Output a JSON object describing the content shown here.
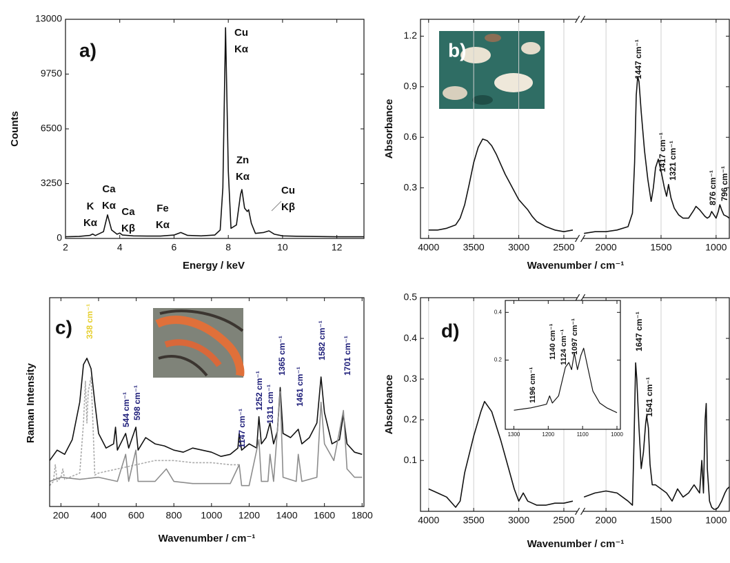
{
  "chart_data": [
    {
      "type": "line",
      "label": "a)",
      "x_label": "Energy / keV",
      "y_label": "Counts",
      "xlim": [
        2,
        13
      ],
      "ylim": [
        0,
        13000
      ],
      "xticks": [
        2,
        4,
        6,
        8,
        10,
        12
      ],
      "yticks": [
        0,
        3250,
        6500,
        9750,
        13000
      ],
      "x": [
        2,
        2.5,
        2.9,
        3.0,
        3.1,
        3.4,
        3.55,
        3.7,
        3.9,
        4.0,
        4.1,
        4.5,
        5,
        5.5,
        6.0,
        6.25,
        6.5,
        7.0,
        7.5,
        7.7,
        7.8,
        7.9,
        8.0,
        8.1,
        8.3,
        8.45,
        8.5,
        8.6,
        8.7,
        8.75,
        8.85,
        9.0,
        9.3,
        9.5,
        9.7,
        10,
        10.5,
        11,
        11.5,
        12,
        12.5,
        13
      ],
      "series": [
        {
          "color": "#111111",
          "values": [
            100,
            120,
            180,
            260,
            170,
            400,
            1400,
            500,
            250,
            320,
            200,
            150,
            140,
            140,
            200,
            350,
            180,
            150,
            200,
            500,
            3000,
            12500,
            4000,
            600,
            800,
            2600,
            2900,
            1800,
            1600,
            1700,
            900,
            300,
            350,
            450,
            250,
            150,
            130,
            120,
            110,
            100,
            100,
            100
          ]
        }
      ],
      "annotations": [
        [
          "K",
          "Kα"
        ],
        [
          "Ca",
          "Kα"
        ],
        [
          "Ca",
          "Kβ"
        ],
        [
          "Fe",
          "Kα"
        ],
        [
          "Cu",
          "Kα"
        ],
        [
          "Zn",
          "Kα"
        ],
        [
          "Cu",
          "Kβ"
        ]
      ]
    },
    {
      "type": "line",
      "label": "b)",
      "label_color": "#ffffff",
      "x_label": "Wavenumber / cm⁻¹",
      "y_label": "Absorbance",
      "xlim": [
        4090,
        880
      ],
      "x_break": [
        2350,
        2210
      ],
      "ylim": [
        0,
        1.3
      ],
      "grid": true,
      "xticks": [
        4000,
        3500,
        3000,
        2500,
        2000,
        1500,
        1000
      ],
      "yticks": [
        {
          "value": 0.3,
          "label": "0.3"
        },
        {
          "value": 0.6,
          "label": "0.6"
        },
        {
          "value": 0.9,
          "label": "0.9"
        },
        {
          "value": 1.2,
          "label": "1.2"
        }
      ],
      "x": [
        4000,
        3900,
        3800,
        3700,
        3650,
        3600,
        3550,
        3500,
        3450,
        3400,
        3350,
        3300,
        3250,
        3200,
        3150,
        3100,
        3050,
        3000,
        2950,
        2900,
        2850,
        2800,
        2700,
        2600,
        2500,
        2400,
        null,
        2200,
        2100,
        2000,
        1900,
        1800,
        1760,
        1740,
        1725,
        1712,
        1700,
        1680,
        1650,
        1620,
        1590,
        1570,
        1550,
        1525,
        1500,
        1470,
        1450,
        1432,
        1410,
        1380,
        1340,
        1300,
        1250,
        1200,
        1183,
        1150,
        1100,
        1080,
        1059,
        1040,
        1020,
        1000,
        980,
        966,
        950,
        930,
        900,
        880
      ],
      "series": [
        {
          "color": "#111111",
          "values": [
            0.05,
            0.05,
            0.06,
            0.08,
            0.12,
            0.2,
            0.32,
            0.45,
            0.54,
            0.59,
            0.58,
            0.55,
            0.5,
            0.44,
            0.38,
            0.33,
            0.28,
            0.23,
            0.2,
            0.17,
            0.13,
            0.1,
            0.07,
            0.05,
            0.04,
            0.05,
            null,
            0.03,
            0.04,
            0.04,
            0.05,
            0.07,
            0.15,
            0.45,
            0.85,
            0.96,
            0.93,
            0.75,
            0.52,
            0.35,
            0.22,
            0.3,
            0.42,
            0.47,
            0.4,
            0.3,
            0.25,
            0.32,
            0.24,
            0.18,
            0.14,
            0.12,
            0.12,
            0.17,
            0.19,
            0.17,
            0.13,
            0.12,
            0.13,
            0.16,
            0.14,
            0.12,
            0.16,
            0.2,
            0.17,
            0.14,
            0.13,
            0.12
          ]
        }
      ],
      "annotations": [
        "1447 cm⁻¹",
        "1417 cm⁻¹",
        "1321 cm⁻¹",
        "876 cm⁻¹",
        "796 cm⁻¹"
      ]
    },
    {
      "type": "line",
      "label": "c)",
      "x_label": "Wavenumber / cm⁻¹",
      "y_label": "Raman Intensity",
      "xlim": [
        140,
        1810
      ],
      "ylim": [
        0,
        100
      ],
      "xticks": [
        200,
        400,
        600,
        800,
        1000,
        1200,
        1400,
        1600,
        1800
      ],
      "series": [
        {
          "color": "#111111",
          "x": [
            140,
            180,
            220,
            260,
            300,
            320,
            338,
            360,
            380,
            400,
            440,
            480,
            490,
            500,
            544,
            560,
            598,
            610,
            650,
            700,
            750,
            800,
            850,
            900,
            950,
            1000,
            1050,
            1100,
            1140,
            1147,
            1160,
            1200,
            1240,
            1252,
            1265,
            1290,
            1311,
            1330,
            1350,
            1365,
            1380,
            1420,
            1461,
            1480,
            1520,
            1560,
            1582,
            1600,
            1640,
            1680,
            1701,
            1720,
            1760,
            1800
          ],
          "values": [
            22,
            27,
            25,
            32,
            50,
            68,
            71,
            66,
            50,
            35,
            28,
            30,
            38,
            27,
            35,
            28,
            38,
            27,
            33,
            30,
            29,
            27,
            26,
            28,
            27,
            26,
            24,
            25,
            28,
            35,
            27,
            30,
            28,
            43,
            30,
            33,
            40,
            30,
            36,
            57,
            35,
            33,
            37,
            30,
            33,
            40,
            62,
            45,
            30,
            32,
            44,
            30,
            26,
            25
          ]
        },
        {
          "color": "#aaaaaa",
          "dashed": true,
          "x": [
            140,
            160,
            170,
            180,
            200,
            210,
            220,
            300,
            320,
            330,
            338,
            345,
            360,
            370,
            380,
            400,
            500,
            600,
            700,
            800,
            900,
            1000,
            1100,
            1150
          ],
          "values": [
            10,
            12,
            20,
            12,
            14,
            18,
            13,
            16,
            40,
            60,
            40,
            55,
            62,
            40,
            15,
            16,
            18,
            20,
            22,
            22,
            21,
            21,
            20,
            20
          ]
        },
        {
          "color": "#8c8c8c",
          "x": [
            140,
            200,
            300,
            400,
            500,
            544,
            560,
            598,
            610,
            700,
            760,
            800,
            900,
            1000,
            1100,
            1147,
            1160,
            1200,
            1252,
            1265,
            1300,
            1311,
            1330,
            1365,
            1380,
            1450,
            1461,
            1480,
            1560,
            1582,
            1600,
            1650,
            1701,
            1720,
            1760,
            1800
          ],
          "values": [
            12,
            14,
            13,
            14,
            12,
            25,
            12,
            27,
            12,
            12,
            18,
            12,
            11,
            11,
            11,
            20,
            10,
            10,
            32,
            12,
            12,
            25,
            12,
            55,
            14,
            12,
            25,
            12,
            14,
            50,
            30,
            22,
            46,
            18,
            14,
            14
          ]
        }
      ],
      "annotations": [
        {
          "text": "338 cm⁻¹",
          "color": "#e6cf2e"
        },
        {
          "text": "544 cm⁻¹",
          "color": "#1c1c78"
        },
        {
          "text": "598 cm⁻¹",
          "color": "#1c1c78"
        },
        {
          "text": "1147 cm⁻¹",
          "color": "#1c1c78"
        },
        {
          "text": "1252 cm⁻¹",
          "color": "#1c1c78"
        },
        {
          "text": "1311 cm⁻¹",
          "color": "#1c1c78"
        },
        {
          "text": "1365 cm⁻¹",
          "color": "#1c1c78"
        },
        {
          "text": "1461 cm⁻¹",
          "color": "#1c1c78"
        },
        {
          "text": "1582 cm⁻¹",
          "color": "#1c1c78"
        },
        {
          "text": "1701 cm⁻¹",
          "color": "#1c1c78"
        }
      ]
    },
    {
      "type": "line",
      "label": "d)",
      "x_label": "Wavenumber / cm⁻¹",
      "y_label": "Absorbance",
      "xlim": [
        4090,
        880
      ],
      "x_break": [
        2350,
        2210
      ],
      "ylim": [
        -0.025,
        0.5
      ],
      "grid": true,
      "xticks": [
        4000,
        3500,
        3000,
        2500,
        2000,
        1500,
        1000
      ],
      "yticks": [
        {
          "value": 0.1,
          "label": "0.1"
        },
        {
          "value": 0.2,
          "label": "0.2"
        },
        {
          "value": 0.3,
          "label": "0.3"
        },
        {
          "value": 0.4,
          "label": "0.4"
        },
        {
          "value": 0.5,
          "label": "0.5"
        }
      ],
      "x": [
        4000,
        3900,
        3800,
        3700,
        3650,
        3600,
        3500,
        3420,
        3380,
        3300,
        3200,
        3100,
        3050,
        3000,
        2950,
        2900,
        2850,
        2800,
        2700,
        2600,
        2500,
        2400,
        null,
        2200,
        2100,
        2000,
        1900,
        1800,
        1760,
        1745,
        1731,
        1720,
        1700,
        1680,
        1660,
        1640,
        1631,
        1615,
        1600,
        1580,
        1550,
        1500,
        1450,
        1400,
        1350,
        1300,
        1250,
        1200,
        1150,
        1130,
        1115,
        1100,
        1090,
        1080,
        1060,
        1040,
        1020,
        1000,
        980,
        950,
        920,
        900,
        880
      ],
      "series": [
        {
          "color": "#111111",
          "values": [
            0.03,
            0.02,
            0.01,
            -0.015,
            0.0,
            0.07,
            0.16,
            0.22,
            0.245,
            0.22,
            0.15,
            0.07,
            0.03,
            0.0,
            0.02,
            0.0,
            -0.005,
            -0.01,
            -0.01,
            -0.005,
            -0.005,
            0.0,
            null,
            0.01,
            0.02,
            0.025,
            0.02,
            0.0,
            -0.01,
            0.15,
            0.34,
            0.3,
            0.18,
            0.08,
            0.12,
            0.19,
            0.21,
            0.18,
            0.09,
            0.04,
            0.04,
            0.03,
            0.02,
            0.0,
            0.03,
            0.01,
            0.02,
            0.04,
            0.02,
            0.1,
            0.02,
            0.2,
            0.24,
            0.08,
            0.0,
            -0.015,
            -0.02,
            -0.02,
            -0.015,
            0.0,
            0.02,
            0.03,
            0.035
          ]
        }
      ],
      "annotations": [
        "1647 cm⁻¹",
        "1541 cm⁻¹"
      ],
      "inset": {
        "xlim": [
          1325,
          990
        ],
        "ylim": [
          -0.09,
          0.45
        ],
        "xticks": [
          1300,
          1200,
          1100,
          1000
        ],
        "yticks": [
          {
            "value": 0.2,
            "label": "0.2"
          },
          {
            "value": 0.4,
            "label": "0.4"
          }
        ],
        "x": [
          1300,
          1250,
          1220,
          1205,
          1196,
          1188,
          1170,
          1150,
          1140,
          1132,
          1124,
          1115,
          1105,
          1097,
          1085,
          1070,
          1050,
          1030,
          1000
        ],
        "series": [
          {
            "color": "#111111",
            "values": [
              -0.01,
              0.0,
              0.01,
              0.015,
              0.05,
              0.02,
              0.05,
              0.17,
              0.19,
              0.16,
              0.23,
              0.16,
              0.22,
              0.25,
              0.17,
              0.07,
              0.02,
              0.0,
              -0.02
            ]
          }
        ],
        "annotations": [
          "1196 cm⁻¹",
          "1140 cm⁻¹",
          "1124 cm⁻¹",
          "1097 cm⁻¹"
        ]
      }
    }
  ]
}
